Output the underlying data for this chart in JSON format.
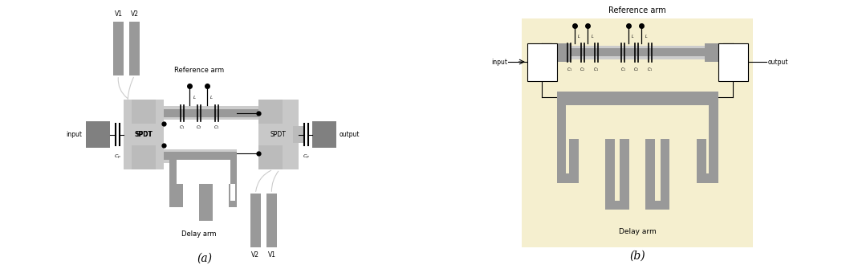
{
  "fig_width": 10.59,
  "fig_height": 3.35,
  "bg_color": "#ffffff",
  "gray_dark": "#808080",
  "gray_mid": "#999999",
  "gray_light": "#bbbbbb",
  "gray_lighter": "#cccccc",
  "gray_spdt": "#c8c8c8",
  "yellow_bg": "#f5efcf",
  "black": "#000000",
  "label_a": "(a)",
  "label_b": "(b)",
  "ref_arm_text": "Reference arm",
  "delay_arm_text": "Delay arm",
  "spdt_text": "SPDT",
  "input_text": "input",
  "output_text": "output",
  "v1_text": "V1",
  "v2_text": "V2"
}
